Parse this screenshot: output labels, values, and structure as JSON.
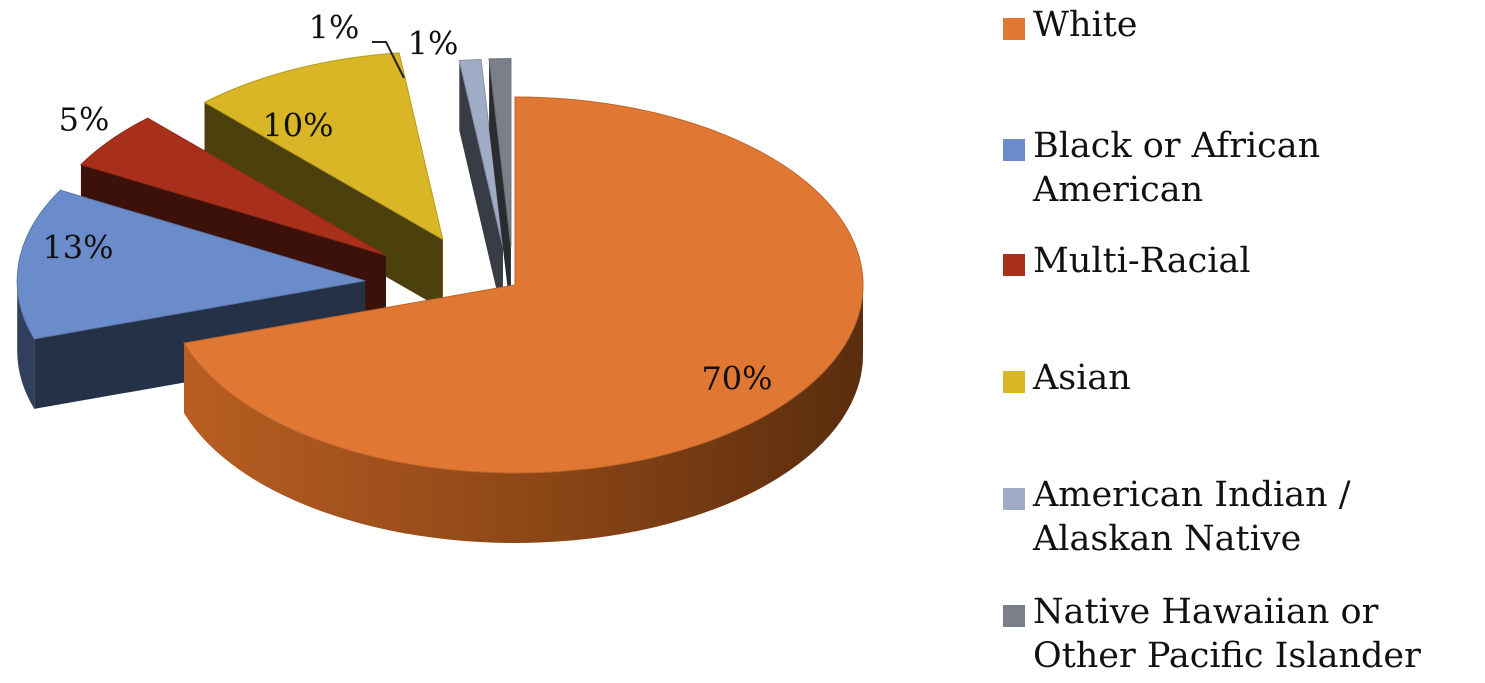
{
  "chart_data": {
    "type": "pie",
    "categories": [
      "White",
      "Black or African American",
      "Multi-Racial",
      "Asian",
      "American Indian / Alaskan Native",
      "Native Hawaiian or Other Pacific Islander"
    ],
    "values": [
      70,
      13,
      5,
      10,
      1,
      1
    ],
    "labels": [
      "70%",
      "13%",
      "5%",
      "10%",
      "1%",
      "1%"
    ],
    "colors": [
      "#E07733",
      "#6B8CCB",
      "#A8301B",
      "#D9B626",
      "#A0ABC5",
      "#7A7F89"
    ],
    "style": "3d-exploded",
    "legend": "right"
  }
}
